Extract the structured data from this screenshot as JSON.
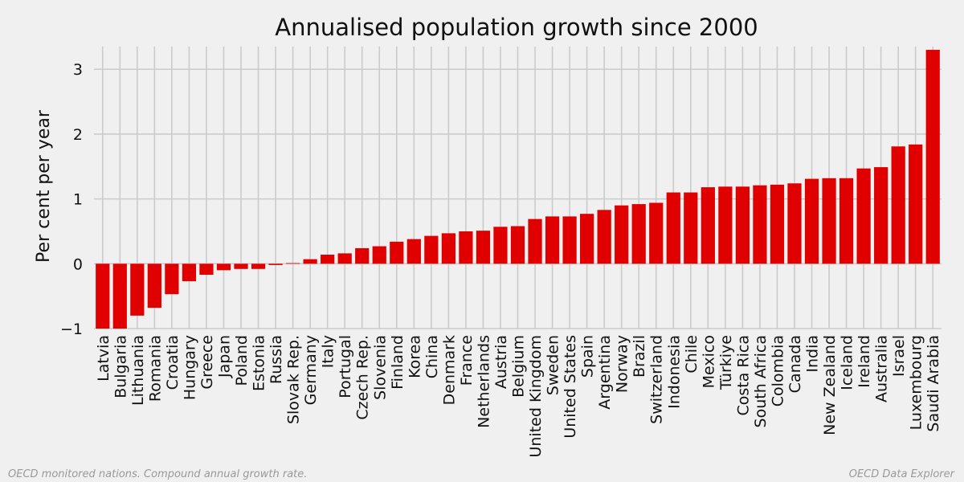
{
  "chart_data": {
    "type": "bar",
    "title": "Annualised population growth since 2000",
    "xlabel": "",
    "ylabel": "Per cent per year",
    "ylim": [
      -1,
      3.35
    ],
    "yticks": [
      -1,
      0,
      1,
      2,
      3
    ],
    "ytick_labels": [
      "−1",
      "0",
      "1",
      "2",
      "3"
    ],
    "grid": true,
    "legend": "none",
    "bar_color": "#e00000",
    "background_color": "#f0f0f0",
    "grid_color": "#cbcbcb",
    "categories": [
      "Latvia",
      "Bulgaria",
      "Lithuania",
      "Romania",
      "Croatia",
      "Hungary",
      "Greece",
      "Japan",
      "Poland",
      "Estonia",
      "Russia",
      "Slovak Rep.",
      "Germany",
      "Italy",
      "Portugal",
      "Czech Rep.",
      "Slovenia",
      "Finland",
      "Korea",
      "China",
      "Denmark",
      "France",
      "Netherlands",
      "Austria",
      "Belgium",
      "United Kingdom",
      "Sweden",
      "United States",
      "Spain",
      "Argentina",
      "Norway",
      "Brazil",
      "Switzerland",
      "Indonesia",
      "Chile",
      "Mexico",
      "Türkiye",
      "Costa Rica",
      "South Africa",
      "Colombia",
      "Canada",
      "India",
      "New Zealand",
      "Iceland",
      "Ireland",
      "Australia",
      "Israel",
      "Luxembourg",
      "Saudi Arabia"
    ],
    "values": [
      -1.0,
      -1.0,
      -0.8,
      -0.68,
      -0.47,
      -0.27,
      -0.17,
      -0.1,
      -0.08,
      -0.08,
      -0.02,
      0.01,
      0.07,
      0.14,
      0.16,
      0.24,
      0.27,
      0.34,
      0.38,
      0.43,
      0.47,
      0.5,
      0.51,
      0.57,
      0.58,
      0.69,
      0.73,
      0.73,
      0.77,
      0.83,
      0.9,
      0.92,
      0.94,
      1.1,
      1.1,
      1.18,
      1.19,
      1.19,
      1.21,
      1.22,
      1.24,
      1.31,
      1.32,
      1.32,
      1.47,
      1.49,
      1.81,
      1.84,
      3.3
    ]
  },
  "footer": {
    "left": "OECD monitored nations. Compound annual growth rate.",
    "right": "OECD Data Explorer"
  }
}
